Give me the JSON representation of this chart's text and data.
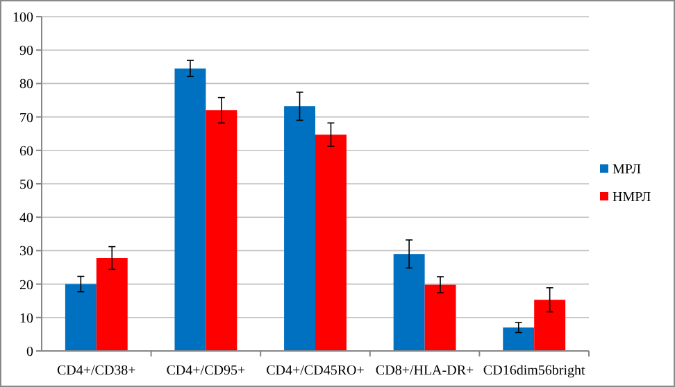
{
  "chart_data": {
    "type": "bar",
    "categories": [
      "CD4+/CD38+",
      "CD4+/CD95+",
      "CD4+/CD45RO+",
      "CD8+/HLA-DR+",
      "CD16dim56bright"
    ],
    "series": [
      {
        "name": "МРЛ",
        "color": "#0070c0",
        "values": [
          20,
          84.5,
          73.2,
          29,
          7
        ],
        "errors": [
          2.3,
          2.4,
          4.2,
          4.2,
          1.5
        ]
      },
      {
        "name": "НМРЛ",
        "color": "#ff0000",
        "values": [
          27.8,
          72,
          64.7,
          19.8,
          15.3
        ],
        "errors": [
          3.4,
          3.8,
          3.5,
          2.4,
          3.6
        ]
      }
    ],
    "ylim": [
      0,
      100
    ],
    "yticks": [
      0,
      10,
      20,
      30,
      40,
      50,
      60,
      70,
      80,
      90,
      100
    ],
    "grid": "y",
    "legend": "right"
  }
}
